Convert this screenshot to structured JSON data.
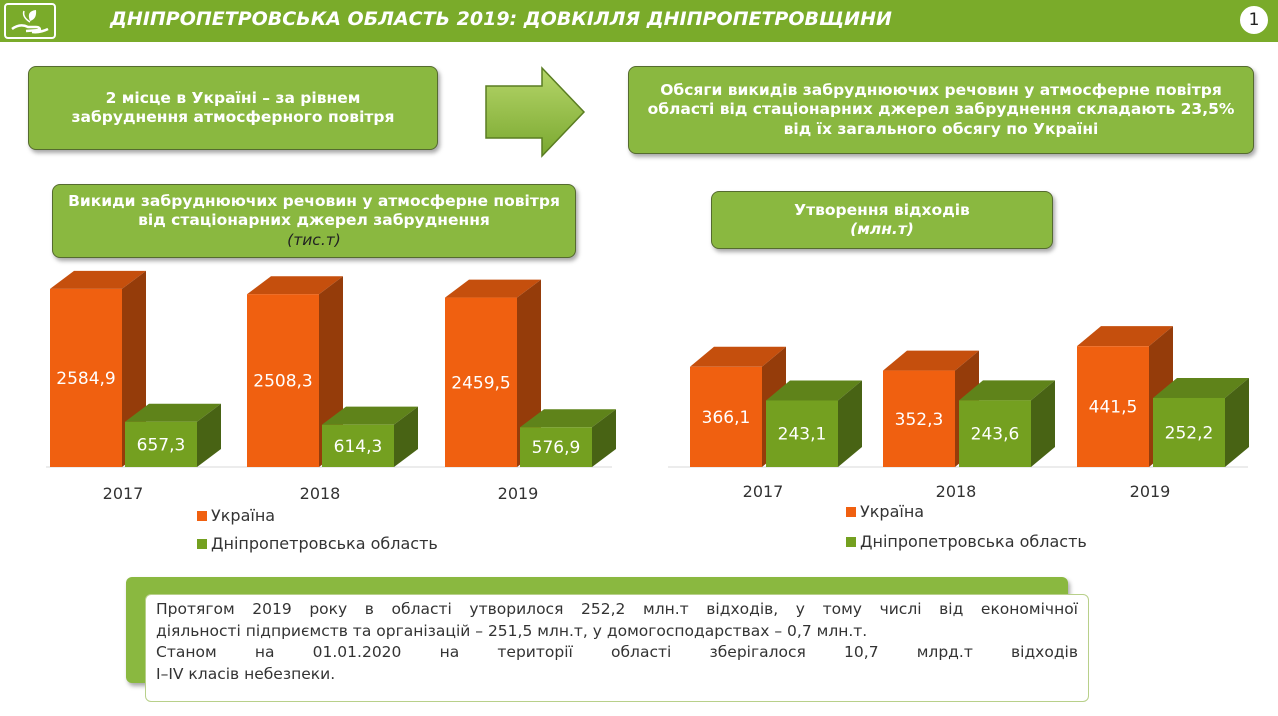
{
  "header": {
    "title": "ДНІПРОПЕТРОВСЬКА ОБЛАСТЬ 2019: ДОВКІЛЛЯ ДНІПРОПЕТРОВЩИНИ",
    "page_number": "1",
    "logo_icon": "hands-with-leaf-icon",
    "color": "#7aab2a"
  },
  "top": {
    "rank_text": "2 місце в Україні – за рівнем забруднення атмосферного повітря",
    "share_text": "Обсяги викидів забруднюючих речовин у атмосферне повітря області від стаціонарних джерел забруднення складають 23,5% від їх загального обсягу по Україні",
    "arrow_icon": "arrow-right-icon"
  },
  "chart_data": [
    {
      "type": "bar",
      "title": "Викиди забруднюючих речовин у атмосферне повітря від стаціонарних джерел забруднення",
      "unit": "(тис.т)",
      "categories": [
        "2017",
        "2018",
        "2019"
      ],
      "series": [
        {
          "name": "Україна",
          "values": [
            "2584,9",
            "2508,3",
            "2459,5"
          ],
          "color": "#f06010"
        },
        {
          "name": "Дніпропетровська область",
          "values": [
            "657,3",
            "614,3",
            "576,9"
          ],
          "color": "#74a020"
        }
      ],
      "ylim": [
        0,
        2700
      ],
      "legend": "bottom"
    },
    {
      "type": "bar",
      "title": "Утворення відходів",
      "unit": "(млн.т)",
      "categories": [
        "2017",
        "2018",
        "2019"
      ],
      "series": [
        {
          "name": "Україна",
          "values": [
            "366,1",
            "352,3",
            "441,5"
          ],
          "color": "#f06010"
        },
        {
          "name": "Дніпропетровська область",
          "values": [
            "243,1",
            "243,6",
            "252,2"
          ],
          "color": "#74a020"
        }
      ],
      "ylim": [
        0,
        570
      ],
      "legend": "bottom"
    }
  ],
  "note": {
    "line1": "Протягом 2019 року в області утворилося 252,2 млн.т відходів, у тому числі  від економічної",
    "line2": "діяльності підприємств та організацій – 251,5 млн.т, у домогосподарствах – 0,7 млн.т.",
    "line3": "Станом      на      01.01.2020  на території   області    зберігалося 10,7 млрд.т відходів",
    "line4": "I–IV класів небезпеки."
  }
}
